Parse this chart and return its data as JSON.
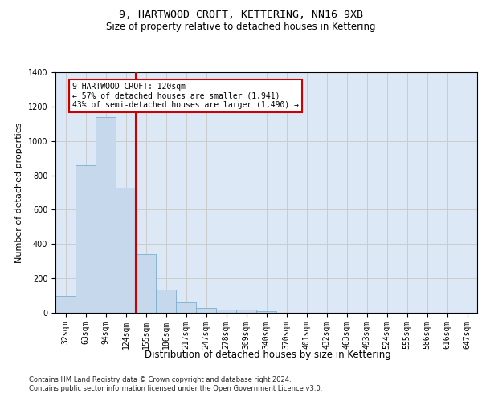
{
  "title": "9, HARTWOOD CROFT, KETTERING, NN16 9XB",
  "subtitle": "Size of property relative to detached houses in Kettering",
  "xlabel": "Distribution of detached houses by size in Kettering",
  "ylabel": "Number of detached properties",
  "categories": [
    "32sqm",
    "63sqm",
    "94sqm",
    "124sqm",
    "155sqm",
    "186sqm",
    "217sqm",
    "247sqm",
    "278sqm",
    "309sqm",
    "340sqm",
    "370sqm",
    "401sqm",
    "432sqm",
    "463sqm",
    "493sqm",
    "524sqm",
    "555sqm",
    "586sqm",
    "616sqm",
    "647sqm"
  ],
  "values": [
    100,
    860,
    1140,
    730,
    340,
    135,
    60,
    30,
    20,
    18,
    10,
    0,
    0,
    0,
    0,
    0,
    0,
    0,
    0,
    0,
    0
  ],
  "bar_color": "#c5d8ec",
  "bar_edge_color": "#7aaed0",
  "vline_index": 3,
  "vline_color": "#cc0000",
  "annotation_line1": "9 HARTWOOD CROFT: 120sqm",
  "annotation_line2": "← 57% of detached houses are smaller (1,941)",
  "annotation_line3": "43% of semi-detached houses are larger (1,490) →",
  "annotation_box_edgecolor": "#cc0000",
  "annotation_box_facecolor": "white",
  "ylim": [
    0,
    1400
  ],
  "yticks": [
    0,
    200,
    400,
    600,
    800,
    1000,
    1200,
    1400
  ],
  "grid_color": "#cccccc",
  "bg_color": "#dce8f5",
  "footnote_line1": "Contains HM Land Registry data © Crown copyright and database right 2024.",
  "footnote_line2": "Contains public sector information licensed under the Open Government Licence v3.0.",
  "title_fontsize": 9.5,
  "subtitle_fontsize": 8.5,
  "ylabel_fontsize": 8,
  "xlabel_fontsize": 8.5,
  "tick_fontsize": 7,
  "annot_fontsize": 7,
  "footnote_fontsize": 6
}
